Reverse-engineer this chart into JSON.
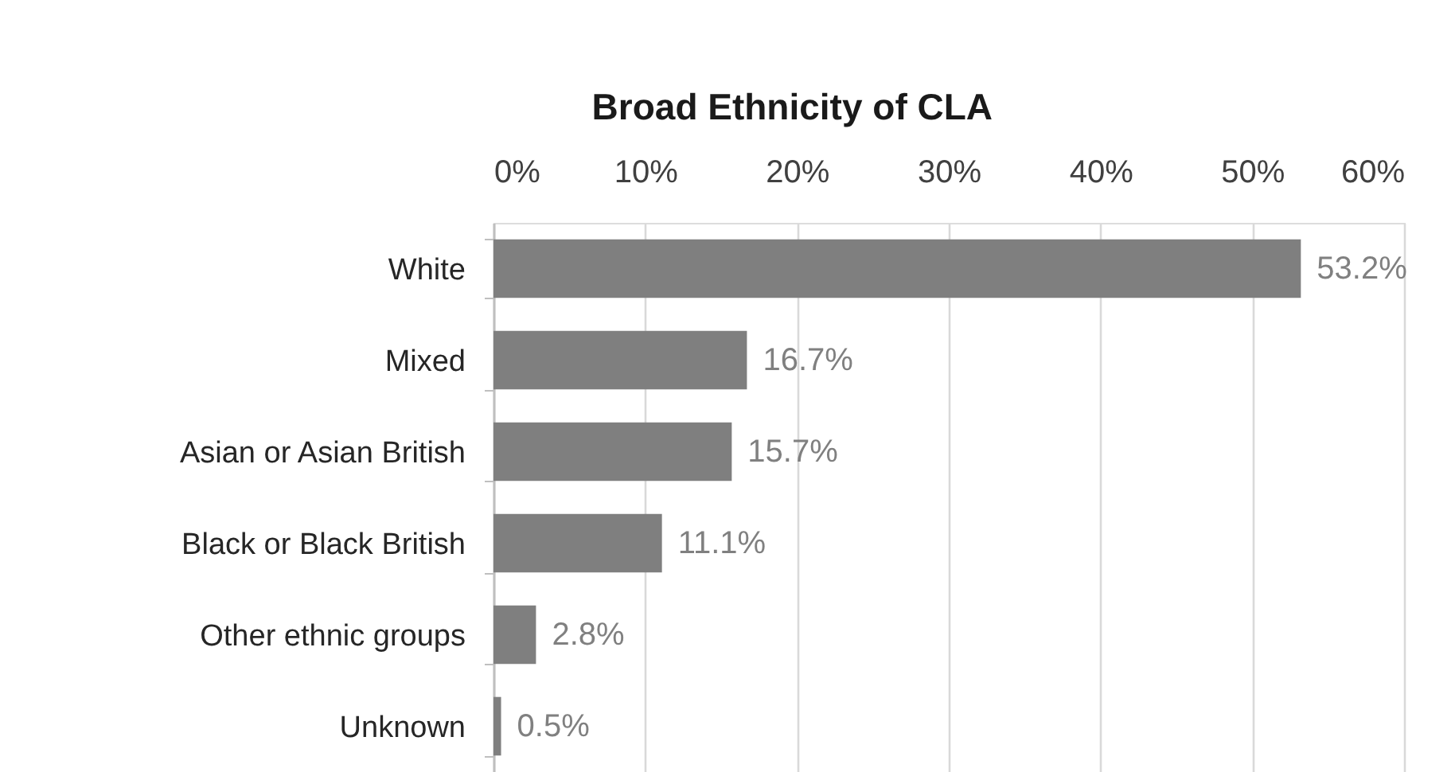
{
  "chart_data": {
    "type": "bar",
    "orientation": "horizontal",
    "title": "Broad Ethnicity of CLA",
    "categories": [
      "White",
      "Mixed",
      "Asian or Asian British",
      "Black or Black British",
      "Other ethnic groups",
      "Unknown"
    ],
    "values": [
      53.2,
      16.7,
      15.7,
      11.1,
      2.8,
      0.5
    ],
    "color": "#7f7f7f",
    "value_labels": [
      "53.2%",
      "16.7%",
      "15.7%",
      "11.1%",
      "2.8%",
      "0.5%"
    ],
    "xlim": [
      0,
      60
    ],
    "xticks": [
      {
        "value": 0,
        "label": "0%"
      },
      {
        "value": 10,
        "label": "10%"
      },
      {
        "value": 20,
        "label": "20%"
      },
      {
        "value": 30,
        "label": "30%"
      },
      {
        "value": 40,
        "label": "40%"
      },
      {
        "value": 50,
        "label": "50%"
      },
      {
        "value": 60,
        "label": "60%"
      }
    ],
    "grid": "x"
  }
}
